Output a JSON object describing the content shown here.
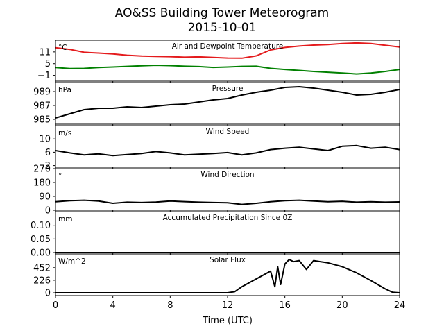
{
  "figure": {
    "title": "AO&SS Building Tower Meteorogram",
    "subtitle": "2015-10-01",
    "xlabel": "Time (UTC)"
  },
  "chart_data": [
    {
      "type": "line",
      "title": "Air and Dewpoint Temperature",
      "ylabel": "°C",
      "xlim": [
        0,
        24
      ],
      "ylim": [
        -4,
        17
      ],
      "yticks": [
        -1,
        5,
        11
      ],
      "ytick_labels": [
        "−1",
        "5",
        "11"
      ],
      "series": [
        {
          "color": "#e41a1c",
          "x": [
            0,
            1,
            2,
            3,
            4,
            5,
            6,
            7,
            8,
            9,
            10,
            11,
            12,
            13,
            14,
            15,
            16,
            17,
            18,
            19,
            20,
            21,
            22,
            23,
            24
          ],
          "values": [
            13.2,
            12.3,
            10.8,
            10.4,
            10.0,
            9.3,
            8.9,
            8.7,
            8.6,
            8.3,
            8.5,
            8.2,
            7.9,
            7.8,
            9.0,
            12.0,
            13.3,
            14.0,
            14.5,
            14.8,
            15.3,
            15.6,
            15.3,
            14.4,
            13.5
          ]
        },
        {
          "color": "#008000",
          "x": [
            0,
            1,
            2,
            3,
            4,
            5,
            6,
            7,
            8,
            9,
            10,
            11,
            12,
            13,
            14,
            15,
            16,
            17,
            18,
            19,
            20,
            21,
            22,
            23,
            24
          ],
          "values": [
            3.0,
            2.5,
            2.6,
            3.0,
            3.3,
            3.6,
            3.9,
            4.2,
            4.0,
            3.7,
            3.5,
            3.1,
            3.3,
            3.6,
            3.7,
            2.6,
            2.0,
            1.5,
            1.0,
            0.6,
            0.2,
            -0.3,
            0.2,
            1.0,
            2.0
          ]
        }
      ]
    },
    {
      "type": "line",
      "title": "Pressure",
      "ylabel": "hPa",
      "xlim": [
        0,
        24
      ],
      "ylim": [
        984.3,
        990.3
      ],
      "yticks": [
        985,
        987,
        989
      ],
      "ytick_labels": [
        "985",
        "987",
        "989"
      ],
      "series": [
        {
          "color": "#000000",
          "x": [
            0,
            1,
            2,
            3,
            4,
            5,
            6,
            7,
            8,
            9,
            10,
            11,
            12,
            13,
            14,
            15,
            16,
            17,
            18,
            19,
            20,
            21,
            22,
            23,
            24
          ],
          "values": [
            985.2,
            985.8,
            986.4,
            986.6,
            986.6,
            986.8,
            986.7,
            986.9,
            987.1,
            987.2,
            987.5,
            987.8,
            988.0,
            988.5,
            988.9,
            989.2,
            989.6,
            989.7,
            989.5,
            989.2,
            988.9,
            988.5,
            988.6,
            988.9,
            989.3
          ]
        }
      ]
    },
    {
      "type": "line",
      "title": "Wind Speed",
      "ylabel": "m/s",
      "xlim": [
        0,
        24
      ],
      "ylim": [
        1.5,
        14
      ],
      "yticks": [
        2,
        6,
        10
      ],
      "ytick_labels": [
        "2",
        "6",
        "10"
      ],
      "series": [
        {
          "color": "#000000",
          "x": [
            0,
            1,
            2,
            3,
            4,
            5,
            6,
            7,
            8,
            9,
            10,
            11,
            12,
            13,
            14,
            15,
            16,
            17,
            18,
            19,
            20,
            21,
            22,
            23,
            24
          ],
          "values": [
            6.5,
            5.8,
            5.2,
            5.5,
            5.0,
            5.3,
            5.6,
            6.2,
            5.8,
            5.2,
            5.4,
            5.6,
            5.9,
            5.2,
            5.8,
            6.8,
            7.2,
            7.5,
            7.0,
            6.5,
            7.8,
            8.0,
            7.2,
            7.5,
            6.8
          ]
        }
      ]
    },
    {
      "type": "line",
      "title": "Wind Direction",
      "ylabel": "°",
      "xlim": [
        0,
        24
      ],
      "ylim": [
        0,
        270
      ],
      "yticks": [
        0,
        90,
        180,
        270
      ],
      "ytick_labels": [
        "0",
        "90",
        "180",
        "270"
      ],
      "series": [
        {
          "color": "#000000",
          "x": [
            0,
            1,
            2,
            3,
            4,
            5,
            6,
            7,
            8,
            9,
            10,
            11,
            12,
            13,
            14,
            15,
            16,
            17,
            18,
            19,
            20,
            21,
            22,
            23,
            24
          ],
          "values": [
            55,
            62,
            65,
            60,
            45,
            52,
            50,
            53,
            60,
            56,
            52,
            50,
            48,
            38,
            45,
            55,
            62,
            65,
            60,
            55,
            58,
            52,
            55,
            52,
            54
          ]
        }
      ]
    },
    {
      "type": "line",
      "title": "Accumulated Precipitation Since 0Z",
      "ylabel": "mm",
      "xlim": [
        0,
        24
      ],
      "ylim": [
        0,
        0.15
      ],
      "yticks": [
        0.0,
        0.05,
        0.1
      ],
      "ytick_labels": [
        "0.00",
        "0.05",
        "0.10"
      ],
      "series": [
        {
          "color": "#000000",
          "x": [
            0,
            24
          ],
          "values": [
            0,
            0
          ]
        }
      ]
    },
    {
      "type": "line",
      "title": "Solar Flux",
      "ylabel": "W/m^2",
      "xlim": [
        0,
        24
      ],
      "ylim": [
        -50,
        700
      ],
      "yticks": [
        0,
        226,
        452
      ],
      "ytick_labels": [
        "0",
        "226",
        "452"
      ],
      "series": [
        {
          "color": "#000000",
          "x": [
            0,
            12,
            12.5,
            13,
            14,
            15,
            15.3,
            15.5,
            15.7,
            16,
            16.3,
            16.6,
            17,
            17.5,
            18,
            18.5,
            19,
            20,
            21,
            22,
            23,
            23.5,
            24
          ],
          "values": [
            0,
            0,
            20,
            110,
            250,
            390,
            110,
            470,
            150,
            520,
            600,
            560,
            580,
            420,
            580,
            560,
            540,
            470,
            360,
            220,
            70,
            10,
            0
          ]
        }
      ]
    }
  ],
  "x_axis": {
    "ticks": [
      0,
      4,
      8,
      12,
      16,
      20,
      24
    ],
    "tick_labels": [
      "0",
      "4",
      "8",
      "12",
      "16",
      "20",
      "24"
    ]
  }
}
